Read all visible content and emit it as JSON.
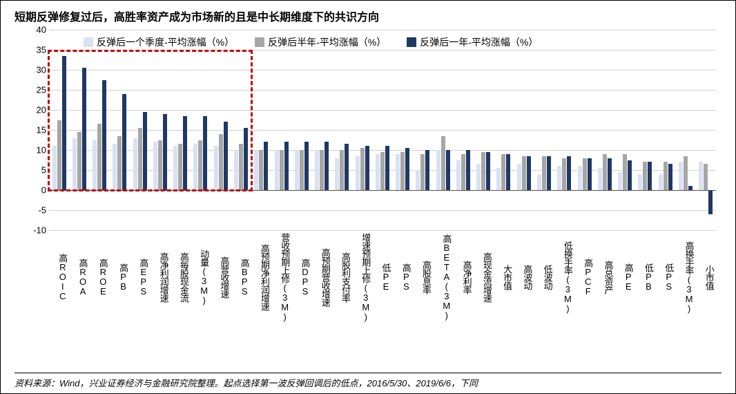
{
  "title": "短期反弹修复过后，高胜率资产成为市场新的且是中长期维度下的共识方向",
  "footer": "资料来源：Wind，兴业证券经济与金融研究院整理。起点选择第一波反弹回调后的低点，2016/5/30、2019/6/6，下同",
  "chart": {
    "type": "bar",
    "ylim": [
      -10,
      40
    ],
    "ytick_step": 5,
    "yticks": [
      -10,
      -5,
      0,
      5,
      10,
      15,
      20,
      25,
      30,
      35,
      40
    ],
    "background_color": "#ffffff",
    "grid_color": "#d0d0d0",
    "highlight_range": [
      0,
      10
    ],
    "highlight_color": "#c00000",
    "series": [
      {
        "label": "反弹后一个季度-平均涨幅（%）",
        "color": "#d9e1f2"
      },
      {
        "label": "反弹后半年-平均涨幅（%）",
        "color": "#a6a6a6"
      },
      {
        "label": "反弹后一年-平均涨幅（%）",
        "color": "#203864"
      }
    ],
    "categories": [
      "高ROIC",
      "高ROA",
      "高ROE",
      "高PB",
      "高EPS",
      "高净利润增速",
      "高每股现金流",
      "动量(3M)",
      "高营收增速",
      "高BPS",
      "高预期净利润增速",
      "营收预期上修(3M)",
      "高DPS",
      "高预期营收增速",
      "高股利支付率",
      "增速预期上修(3M)",
      "低PE",
      "高PS",
      "高股息率",
      "高BETA(3M)",
      "高净利率",
      "高现金流增速",
      "大市值",
      "高波动",
      "低波动",
      "低换手率(3M)",
      "高PCF",
      "高总资产",
      "高PE",
      "低PB",
      "低PS",
      "高换手率(3M)",
      "小市值"
    ],
    "values_s1": [
      11,
      13,
      12.5,
      11.5,
      13,
      12,
      11,
      11.5,
      11,
      10,
      10,
      10,
      10,
      10,
      8,
      8.5,
      9,
      9,
      5,
      10,
      7.5,
      6.5,
      5.5,
      6.5,
      4,
      6,
      6,
      5.5,
      4.5,
      4,
      4,
      7,
      7
    ],
    "values_s2": [
      17.5,
      14.5,
      16.5,
      13.5,
      15.5,
      12.5,
      11.5,
      12.5,
      14,
      11.5,
      10,
      10,
      10,
      10,
      10,
      10.5,
      9.5,
      9.5,
      9,
      13.5,
      9,
      9.5,
      9,
      8.5,
      8.5,
      8,
      8,
      9,
      9,
      7,
      7,
      8.5,
      6.5
    ],
    "values_s3": [
      33.5,
      30.5,
      27.5,
      24,
      19.5,
      19,
      18.5,
      18.5,
      17,
      15.5,
      12,
      12,
      12,
      12,
      11.5,
      11,
      11,
      10.5,
      10,
      10,
      10,
      9.5,
      9,
      8.5,
      8.5,
      8.5,
      8,
      8,
      7.5,
      7,
      6.5,
      1,
      -6
    ]
  }
}
